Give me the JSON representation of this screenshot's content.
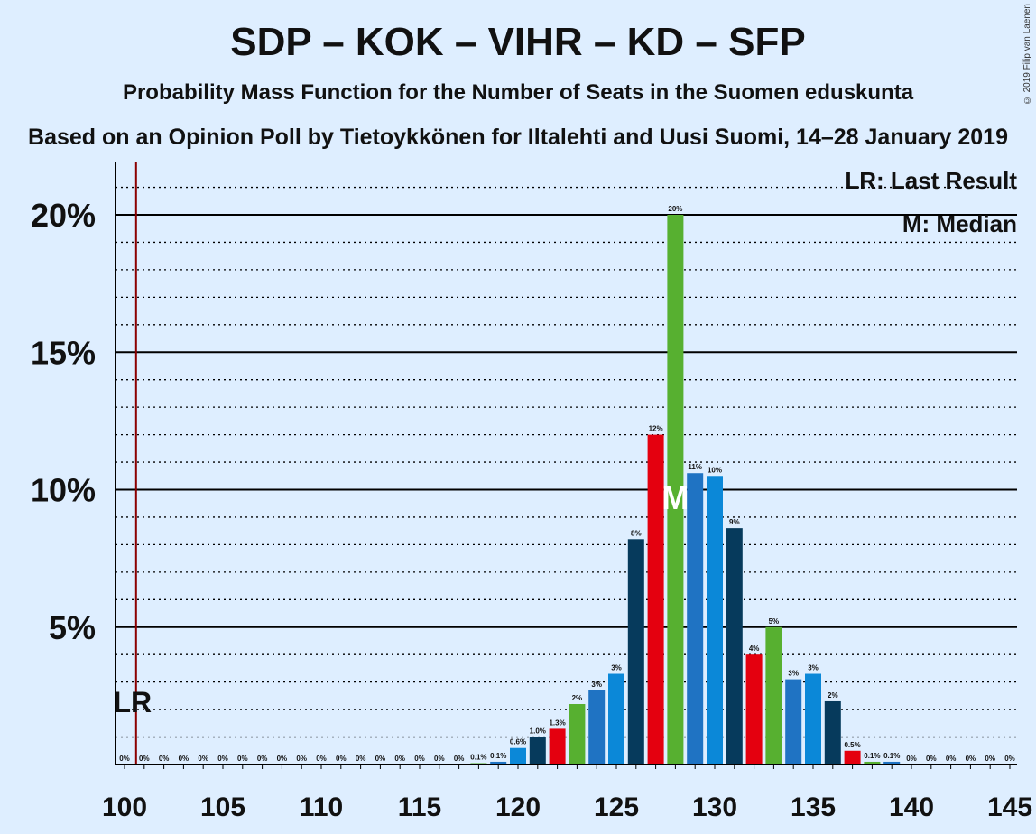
{
  "header": {
    "title": "SDP – KOK – VIHR – KD – SFP",
    "subtitle": "Probability Mass Function for the Number of Seats in the Suomen eduskunta",
    "source": "Based on an Opinion Poll by Tietoykkönen for Iltalehti and Uusi Suomi, 14–28 January 2019",
    "copyright": "© 2019 Filip van Laenen"
  },
  "legend": {
    "last_result": "LR: Last Result",
    "median": "M: Median"
  },
  "markers": {
    "last_result_label": "LR",
    "last_result_seat": 101,
    "median_label": "M",
    "median_seat": 128
  },
  "colors": {
    "background": "#deeeff",
    "lr_line": "#8b0000",
    "bar_palette": [
      "#0b88d8",
      "#063a5c",
      "#e4000f",
      "#57b030",
      "#1f73c3"
    ]
  },
  "chart_data": {
    "type": "bar",
    "xlabel": "",
    "ylabel": "",
    "ylim": [
      0,
      21
    ],
    "xlim": [
      100,
      145
    ],
    "x_ticks": [
      100,
      105,
      110,
      115,
      120,
      125,
      130,
      135,
      140,
      145
    ],
    "y_ticks": [
      {
        "value": 5,
        "label": "5%"
      },
      {
        "value": 10,
        "label": "10%"
      },
      {
        "value": 15,
        "label": "15%"
      },
      {
        "value": 20,
        "label": "20%"
      }
    ],
    "grid": "dotted every 1%, solid every 5%",
    "legend_position": "top-right",
    "bars": [
      {
        "seats": 100,
        "value": 0,
        "label": "0%"
      },
      {
        "seats": 101,
        "value": 0,
        "label": "0%"
      },
      {
        "seats": 102,
        "value": 0,
        "label": "0%"
      },
      {
        "seats": 103,
        "value": 0,
        "label": "0%"
      },
      {
        "seats": 104,
        "value": 0,
        "label": "0%"
      },
      {
        "seats": 105,
        "value": 0,
        "label": "0%"
      },
      {
        "seats": 106,
        "value": 0,
        "label": "0%"
      },
      {
        "seats": 107,
        "value": 0,
        "label": "0%"
      },
      {
        "seats": 108,
        "value": 0,
        "label": "0%"
      },
      {
        "seats": 109,
        "value": 0,
        "label": "0%"
      },
      {
        "seats": 110,
        "value": 0,
        "label": "0%"
      },
      {
        "seats": 111,
        "value": 0,
        "label": "0%"
      },
      {
        "seats": 112,
        "value": 0,
        "label": "0%"
      },
      {
        "seats": 113,
        "value": 0,
        "label": "0%"
      },
      {
        "seats": 114,
        "value": 0,
        "label": "0%"
      },
      {
        "seats": 115,
        "value": 0,
        "label": "0%"
      },
      {
        "seats": 116,
        "value": 0,
        "label": "0%"
      },
      {
        "seats": 117,
        "value": 0,
        "label": "0%"
      },
      {
        "seats": 118,
        "value": 0.05,
        "label": "0.1%"
      },
      {
        "seats": 119,
        "value": 0.1,
        "label": "0.1%"
      },
      {
        "seats": 120,
        "value": 0.6,
        "label": "0.6%"
      },
      {
        "seats": 121,
        "value": 1.0,
        "label": "1.0%"
      },
      {
        "seats": 122,
        "value": 1.3,
        "label": "1.3%"
      },
      {
        "seats": 123,
        "value": 2.2,
        "label": "2%"
      },
      {
        "seats": 124,
        "value": 2.7,
        "label": "3%"
      },
      {
        "seats": 125,
        "value": 3.3,
        "label": "3%"
      },
      {
        "seats": 126,
        "value": 8.2,
        "label": "8%"
      },
      {
        "seats": 127,
        "value": 12.0,
        "label": "12%"
      },
      {
        "seats": 128,
        "value": 20.0,
        "label": "20%"
      },
      {
        "seats": 129,
        "value": 10.6,
        "label": "11%"
      },
      {
        "seats": 130,
        "value": 10.5,
        "label": "10%"
      },
      {
        "seats": 131,
        "value": 8.6,
        "label": "9%"
      },
      {
        "seats": 132,
        "value": 4.0,
        "label": "4%"
      },
      {
        "seats": 133,
        "value": 5.0,
        "label": "5%"
      },
      {
        "seats": 134,
        "value": 3.1,
        "label": "3%"
      },
      {
        "seats": 135,
        "value": 3.3,
        "label": "3%"
      },
      {
        "seats": 136,
        "value": 2.3,
        "label": "2%"
      },
      {
        "seats": 137,
        "value": 0.5,
        "label": "0.5%"
      },
      {
        "seats": 138,
        "value": 0.1,
        "label": "0.1%"
      },
      {
        "seats": 139,
        "value": 0.1,
        "label": "0.1%"
      },
      {
        "seats": 140,
        "value": 0,
        "label": "0%"
      },
      {
        "seats": 141,
        "value": 0,
        "label": "0%"
      },
      {
        "seats": 142,
        "value": 0,
        "label": "0%"
      },
      {
        "seats": 143,
        "value": 0,
        "label": "0%"
      },
      {
        "seats": 144,
        "value": 0,
        "label": "0%"
      },
      {
        "seats": 145,
        "value": 0,
        "label": "0%"
      }
    ]
  }
}
